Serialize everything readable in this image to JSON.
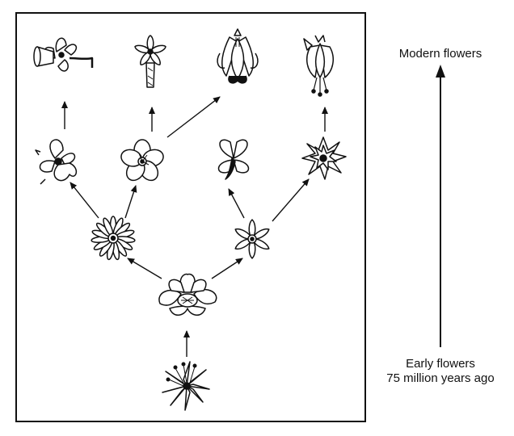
{
  "labels": {
    "modern": "Modern flowers",
    "early_line1": "Early flowers",
    "early_line2": "75 million years ago"
  },
  "colors": {
    "ink": "#111111",
    "paper": "#ffffff"
  }
}
